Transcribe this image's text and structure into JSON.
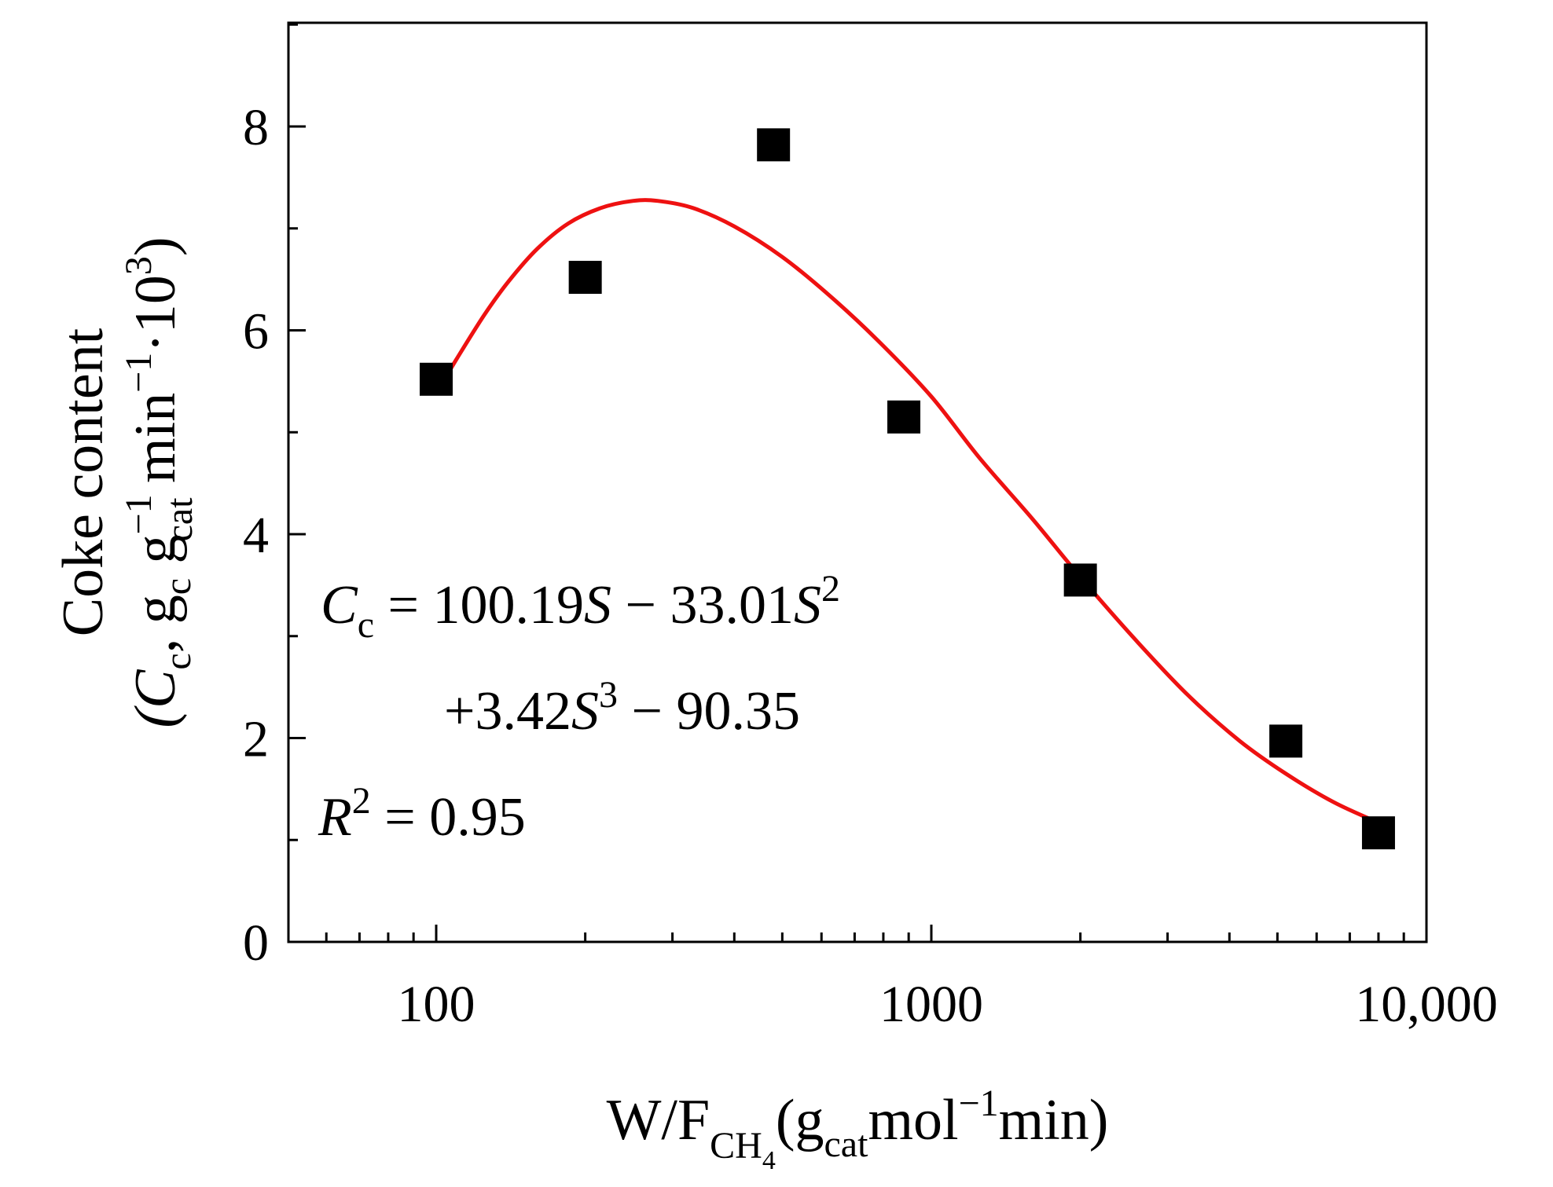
{
  "chart_data": {
    "type": "scatter",
    "title": "",
    "xscale": "log",
    "xlim": [
      50,
      10000
    ],
    "ylim": [
      0,
      9
    ],
    "grid": false,
    "x_ticks": [
      {
        "value": 100,
        "label": "100"
      },
      {
        "value": 1000,
        "label": "1000"
      },
      {
        "value": 10000,
        "label": "10,000"
      }
    ],
    "y_ticks": [
      {
        "value": 0,
        "label": "0"
      },
      {
        "value": 2,
        "label": "2"
      },
      {
        "value": 4,
        "label": "4"
      },
      {
        "value": 6,
        "label": "6"
      },
      {
        "value": 8,
        "label": "8"
      }
    ],
    "xlabel": {
      "main": "W/F",
      "sub": "CH",
      "subsub": "4",
      "paren_open": "(g",
      "g_sub": "cat",
      "mol": "mol",
      "exp": "−1",
      "min": "min)"
    },
    "ylabel": {
      "line1": "Coke content",
      "open": "(C",
      "c_sub": "c",
      "sep": ", g",
      "gc_sub": "c",
      "g2": " g",
      "gcat_sup": "−1",
      "gcat_sub": "cat",
      "min": " min",
      "min_sup": "−1",
      "dot": "·10",
      "ten_sup": "3",
      "close": ")"
    },
    "series": [
      {
        "name": "data",
        "type": "scatter",
        "marker": "square",
        "color": "#000000",
        "points": [
          {
            "x": 100,
            "y": 5.52
          },
          {
            "x": 200,
            "y": 6.52
          },
          {
            "x": 480,
            "y": 7.82
          },
          {
            "x": 880,
            "y": 5.15
          },
          {
            "x": 2000,
            "y": 3.55
          },
          {
            "x": 5200,
            "y": 1.97
          },
          {
            "x": 8000,
            "y": 1.07
          }
        ]
      },
      {
        "name": "fit",
        "type": "line",
        "color": "#ee1111",
        "points": [
          {
            "x": 100,
            "y": 5.38
          },
          {
            "x": 110,
            "y": 5.72
          },
          {
            "x": 125,
            "y": 6.15
          },
          {
            "x": 140,
            "y": 6.48
          },
          {
            "x": 160,
            "y": 6.8
          },
          {
            "x": 185,
            "y": 7.05
          },
          {
            "x": 215,
            "y": 7.2
          },
          {
            "x": 250,
            "y": 7.27
          },
          {
            "x": 280,
            "y": 7.27
          },
          {
            "x": 330,
            "y": 7.2
          },
          {
            "x": 400,
            "y": 7.02
          },
          {
            "x": 500,
            "y": 6.72
          },
          {
            "x": 620,
            "y": 6.35
          },
          {
            "x": 780,
            "y": 5.9
          },
          {
            "x": 1000,
            "y": 5.35
          },
          {
            "x": 1250,
            "y": 4.75
          },
          {
            "x": 1600,
            "y": 4.15
          },
          {
            "x": 2000,
            "y": 3.58
          },
          {
            "x": 2600,
            "y": 2.95
          },
          {
            "x": 3300,
            "y": 2.42
          },
          {
            "x": 4200,
            "y": 1.97
          },
          {
            "x": 5200,
            "y": 1.65
          },
          {
            "x": 6500,
            "y": 1.37
          },
          {
            "x": 8000,
            "y": 1.17
          }
        ]
      }
    ],
    "annotation": {
      "cc": "C",
      "cc_sub": "c",
      "eq1a": " = 100.19",
      "s1": "S",
      "eq1b": " − 33.01",
      "s2": "S",
      "s2_sup": "2",
      "eq2a": "+3.42",
      "s3": "S",
      "s3_sup": "3",
      "eq2b": " − 90.35",
      "r": "R",
      "r_sup": "2",
      "eq3": " = 0.95"
    }
  }
}
